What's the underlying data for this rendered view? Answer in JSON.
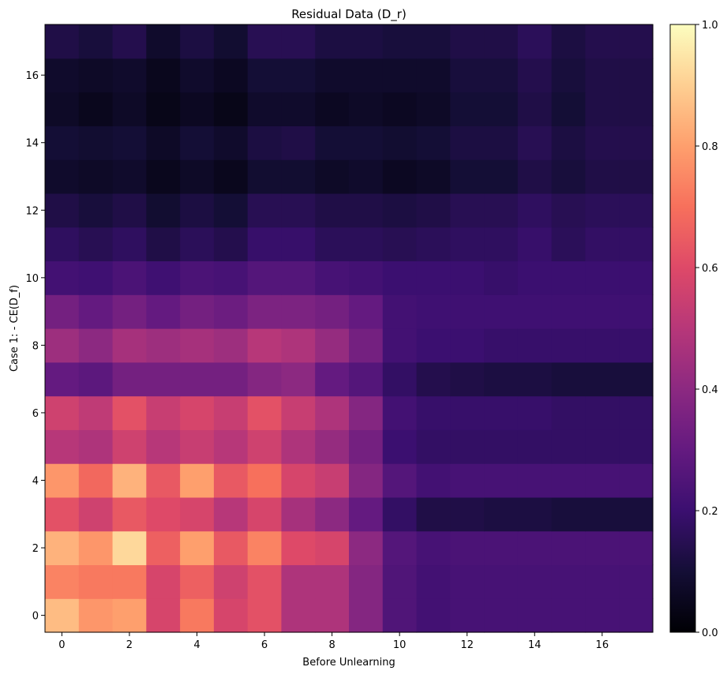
{
  "chart_data": {
    "type": "heatmap",
    "title": "Residual Data (D_r)",
    "xlabel": "Before Unlearning",
    "ylabel": "Case 1: - CE(D_f)",
    "colormap": "magma",
    "origin": "lower",
    "x_ticks": [
      0,
      2,
      4,
      6,
      8,
      10,
      12,
      14,
      16
    ],
    "y_ticks": [
      0,
      2,
      4,
      6,
      8,
      10,
      12,
      14,
      16
    ],
    "xlim": [
      -0.5,
      17.5
    ],
    "ylim": [
      -0.5,
      17.5
    ],
    "colorbar": {
      "range": [
        0.0,
        1.0
      ],
      "ticks": [
        0.0,
        0.2,
        0.4,
        0.6,
        0.8,
        1.0
      ],
      "tick_labels": [
        "0.0",
        "0.2",
        "0.4",
        "0.6",
        "0.8",
        "1.0"
      ]
    },
    "z": [
      [
        0.86,
        0.78,
        0.8,
        0.58,
        0.72,
        0.58,
        0.62,
        0.48,
        0.48,
        0.38,
        0.25,
        0.22,
        0.23,
        0.23,
        0.23,
        0.23,
        0.23,
        0.23
      ],
      [
        0.74,
        0.72,
        0.72,
        0.58,
        0.66,
        0.56,
        0.62,
        0.48,
        0.48,
        0.38,
        0.25,
        0.22,
        0.23,
        0.23,
        0.23,
        0.23,
        0.23,
        0.23
      ],
      [
        0.84,
        0.78,
        0.92,
        0.66,
        0.8,
        0.64,
        0.74,
        0.6,
        0.58,
        0.4,
        0.26,
        0.23,
        0.24,
        0.24,
        0.24,
        0.24,
        0.24,
        0.24
      ],
      [
        0.62,
        0.56,
        0.64,
        0.6,
        0.58,
        0.5,
        0.58,
        0.46,
        0.4,
        0.3,
        0.18,
        0.13,
        0.13,
        0.12,
        0.12,
        0.11,
        0.11,
        0.11
      ],
      [
        0.78,
        0.68,
        0.84,
        0.64,
        0.8,
        0.64,
        0.7,
        0.58,
        0.54,
        0.38,
        0.26,
        0.22,
        0.23,
        0.23,
        0.23,
        0.23,
        0.23,
        0.23
      ],
      [
        0.5,
        0.48,
        0.56,
        0.5,
        0.54,
        0.5,
        0.56,
        0.48,
        0.42,
        0.34,
        0.2,
        0.18,
        0.18,
        0.18,
        0.18,
        0.18,
        0.18,
        0.18
      ],
      [
        0.56,
        0.52,
        0.62,
        0.54,
        0.58,
        0.54,
        0.62,
        0.54,
        0.48,
        0.38,
        0.22,
        0.19,
        0.19,
        0.19,
        0.19,
        0.18,
        0.18,
        0.18
      ],
      [
        0.3,
        0.28,
        0.34,
        0.34,
        0.34,
        0.34,
        0.38,
        0.4,
        0.3,
        0.26,
        0.18,
        0.14,
        0.13,
        0.12,
        0.12,
        0.11,
        0.11,
        0.11
      ],
      [
        0.44,
        0.4,
        0.46,
        0.44,
        0.46,
        0.44,
        0.5,
        0.48,
        0.42,
        0.34,
        0.22,
        0.2,
        0.2,
        0.19,
        0.19,
        0.19,
        0.19,
        0.19
      ],
      [
        0.34,
        0.3,
        0.34,
        0.3,
        0.34,
        0.32,
        0.36,
        0.36,
        0.34,
        0.3,
        0.22,
        0.21,
        0.21,
        0.21,
        0.21,
        0.21,
        0.21,
        0.21
      ],
      [
        0.22,
        0.21,
        0.24,
        0.21,
        0.24,
        0.23,
        0.26,
        0.26,
        0.23,
        0.22,
        0.2,
        0.2,
        0.2,
        0.19,
        0.2,
        0.2,
        0.2,
        0.2
      ],
      [
        0.17,
        0.15,
        0.17,
        0.13,
        0.16,
        0.14,
        0.19,
        0.19,
        0.16,
        0.16,
        0.15,
        0.16,
        0.17,
        0.17,
        0.19,
        0.16,
        0.18,
        0.18
      ],
      [
        0.13,
        0.11,
        0.13,
        0.09,
        0.12,
        0.1,
        0.15,
        0.15,
        0.13,
        0.13,
        0.12,
        0.13,
        0.15,
        0.15,
        0.17,
        0.15,
        0.16,
        0.16
      ],
      [
        0.08,
        0.07,
        0.08,
        0.05,
        0.07,
        0.05,
        0.09,
        0.09,
        0.07,
        0.08,
        0.06,
        0.07,
        0.1,
        0.1,
        0.13,
        0.11,
        0.13,
        0.13
      ],
      [
        0.1,
        0.09,
        0.1,
        0.07,
        0.1,
        0.08,
        0.12,
        0.13,
        0.1,
        0.1,
        0.09,
        0.1,
        0.12,
        0.12,
        0.15,
        0.12,
        0.14,
        0.14
      ],
      [
        0.07,
        0.05,
        0.07,
        0.04,
        0.06,
        0.04,
        0.08,
        0.08,
        0.06,
        0.07,
        0.06,
        0.07,
        0.1,
        0.1,
        0.13,
        0.1,
        0.13,
        0.13
      ],
      [
        0.08,
        0.07,
        0.08,
        0.05,
        0.08,
        0.06,
        0.1,
        0.1,
        0.08,
        0.08,
        0.08,
        0.08,
        0.11,
        0.11,
        0.14,
        0.11,
        0.13,
        0.13
      ],
      [
        0.13,
        0.11,
        0.14,
        0.08,
        0.12,
        0.09,
        0.15,
        0.15,
        0.12,
        0.12,
        0.11,
        0.11,
        0.13,
        0.13,
        0.16,
        0.12,
        0.14,
        0.14
      ]
    ]
  }
}
